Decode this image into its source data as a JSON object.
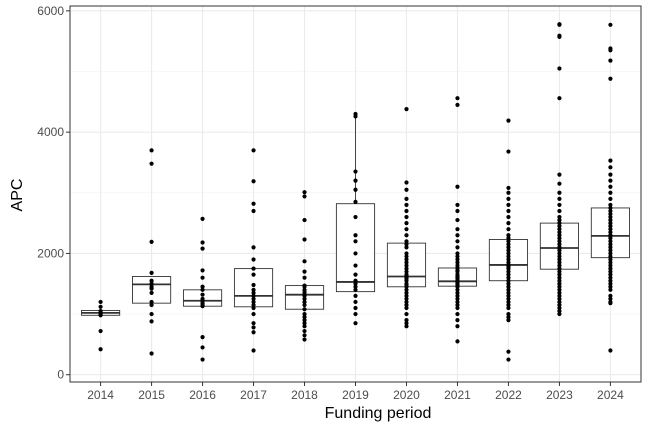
{
  "chart_data": {
    "type": "box",
    "xlabel": "Funding period",
    "ylabel": "APC",
    "ylim": [
      0,
      6000
    ],
    "y_ticks": [
      0,
      2000,
      4000,
      6000
    ],
    "grid": true,
    "theme": "bw",
    "categories": [
      "2014",
      "2015",
      "2016",
      "2017",
      "2018",
      "2019",
      "2020",
      "2021",
      "2022",
      "2023",
      "2024"
    ],
    "boxes": [
      {
        "category": "2014",
        "q1": 980,
        "median": 1020,
        "q3": 1060,
        "whisker_low": 980,
        "whisker_high": 1060,
        "points": [
          1200,
          1120,
          1050,
          1020,
          1000,
          980,
          720,
          420
        ]
      },
      {
        "category": "2015",
        "q1": 1180,
        "median": 1490,
        "q3": 1620,
        "whisker_low": 1180,
        "whisker_high": 1620,
        "points": [
          3700,
          3480,
          2190,
          1680,
          1550,
          1500,
          1450,
          1420,
          1350,
          1200,
          1150,
          1000,
          880,
          350
        ]
      },
      {
        "category": "2016",
        "q1": 1130,
        "median": 1220,
        "q3": 1400,
        "whisker_low": 1130,
        "whisker_high": 1400,
        "points": [
          2570,
          2180,
          2080,
          1720,
          1600,
          1450,
          1400,
          1320,
          1250,
          1220,
          1180,
          1150,
          1130,
          620,
          450,
          250
        ]
      },
      {
        "category": "2017",
        "q1": 1120,
        "median": 1300,
        "q3": 1750,
        "whisker_low": 1120,
        "whisker_high": 1750,
        "points": [
          3700,
          3190,
          2820,
          2700,
          2100,
          1900,
          1750,
          1650,
          1480,
          1400,
          1350,
          1300,
          1250,
          1200,
          1150,
          1100,
          1000,
          850,
          780,
          700,
          400
        ]
      },
      {
        "category": "2018",
        "q1": 1080,
        "median": 1320,
        "q3": 1470,
        "whisker_low": 1080,
        "whisker_high": 1470,
        "points": [
          3010,
          2940,
          2550,
          2230,
          1870,
          1700,
          1600,
          1470,
          1450,
          1400,
          1360,
          1320,
          1300,
          1250,
          1200,
          1150,
          1080,
          1000,
          950,
          900,
          850,
          800,
          720,
          650,
          580
        ]
      },
      {
        "category": "2019",
        "q1": 1370,
        "median": 1530,
        "q3": 2820,
        "whisker_low": 1370,
        "whisker_high": 4300,
        "points": [
          4300,
          4260,
          3350,
          3200,
          3050,
          2850,
          2600,
          2300,
          2200,
          2000,
          1800,
          1650,
          1550,
          1500,
          1450,
          1400,
          1300,
          1200,
          1100,
          1000,
          850
        ]
      },
      {
        "category": "2020",
        "q1": 1450,
        "median": 1620,
        "q3": 2170,
        "whisker_low": 1450,
        "whisker_high": 2170,
        "points": [
          4380,
          3170,
          3050,
          2900,
          2800,
          2700,
          2600,
          2500,
          2400,
          2300,
          2200,
          2150,
          2100,
          2000,
          1950,
          1900,
          1850,
          1800,
          1750,
          1700,
          1650,
          1620,
          1600,
          1580,
          1550,
          1500,
          1480,
          1450,
          1400,
          1350,
          1300,
          1250,
          1200,
          1150,
          1100,
          1000,
          900,
          850,
          800
        ]
      },
      {
        "category": "2021",
        "q1": 1460,
        "median": 1540,
        "q3": 1760,
        "whisker_low": 1460,
        "whisker_high": 1760,
        "points": [
          4560,
          4450,
          3100,
          2800,
          2700,
          2550,
          2400,
          2300,
          2200,
          2100,
          2000,
          1950,
          1900,
          1850,
          1800,
          1760,
          1720,
          1700,
          1650,
          1620,
          1600,
          1580,
          1550,
          1540,
          1520,
          1500,
          1480,
          1450,
          1400,
          1350,
          1300,
          1250,
          1200,
          1150,
          1100,
          1000,
          900,
          800,
          550
        ]
      },
      {
        "category": "2022",
        "q1": 1550,
        "median": 1810,
        "q3": 2230,
        "whisker_low": 1550,
        "whisker_high": 2230,
        "points": [
          4190,
          3680,
          3080,
          3000,
          2900,
          2800,
          2700,
          2600,
          2500,
          2400,
          2300,
          2250,
          2200,
          2150,
          2100,
          2050,
          2000,
          1950,
          1900,
          1850,
          1810,
          1800,
          1780,
          1750,
          1700,
          1650,
          1600,
          1550,
          1500,
          1450,
          1400,
          1350,
          1300,
          1250,
          1200,
          1150,
          1100,
          1000,
          950,
          900,
          380,
          250
        ]
      },
      {
        "category": "2023",
        "q1": 1740,
        "median": 2090,
        "q3": 2500,
        "whisker_low": 1740,
        "whisker_high": 2500,
        "points": [
          5780,
          5770,
          5590,
          5570,
          5050,
          4560,
          3300,
          3150,
          3000,
          2900,
          2800,
          2700,
          2600,
          2550,
          2500,
          2450,
          2400,
          2350,
          2300,
          2250,
          2200,
          2150,
          2100,
          2090,
          2050,
          2000,
          1950,
          1900,
          1850,
          1800,
          1750,
          1700,
          1650,
          1600,
          1550,
          1500,
          1450,
          1400,
          1350,
          1300,
          1250,
          1200,
          1150,
          1100,
          1050,
          1000
        ]
      },
      {
        "category": "2024",
        "q1": 1930,
        "median": 2290,
        "q3": 2750,
        "whisker_low": 1930,
        "whisker_high": 2750,
        "points": [
          5770,
          5380,
          5350,
          5180,
          4880,
          3530,
          3420,
          3300,
          3200,
          3100,
          3000,
          2900,
          2800,
          2750,
          2700,
          2650,
          2600,
          2550,
          2500,
          2450,
          2400,
          2350,
          2300,
          2290,
          2250,
          2200,
          2150,
          2100,
          2050,
          2000,
          1950,
          1900,
          1850,
          1800,
          1750,
          1700,
          1650,
          1600,
          1550,
          1500,
          1450,
          1400,
          1300,
          1250,
          1200,
          1180,
          400
        ]
      }
    ]
  }
}
